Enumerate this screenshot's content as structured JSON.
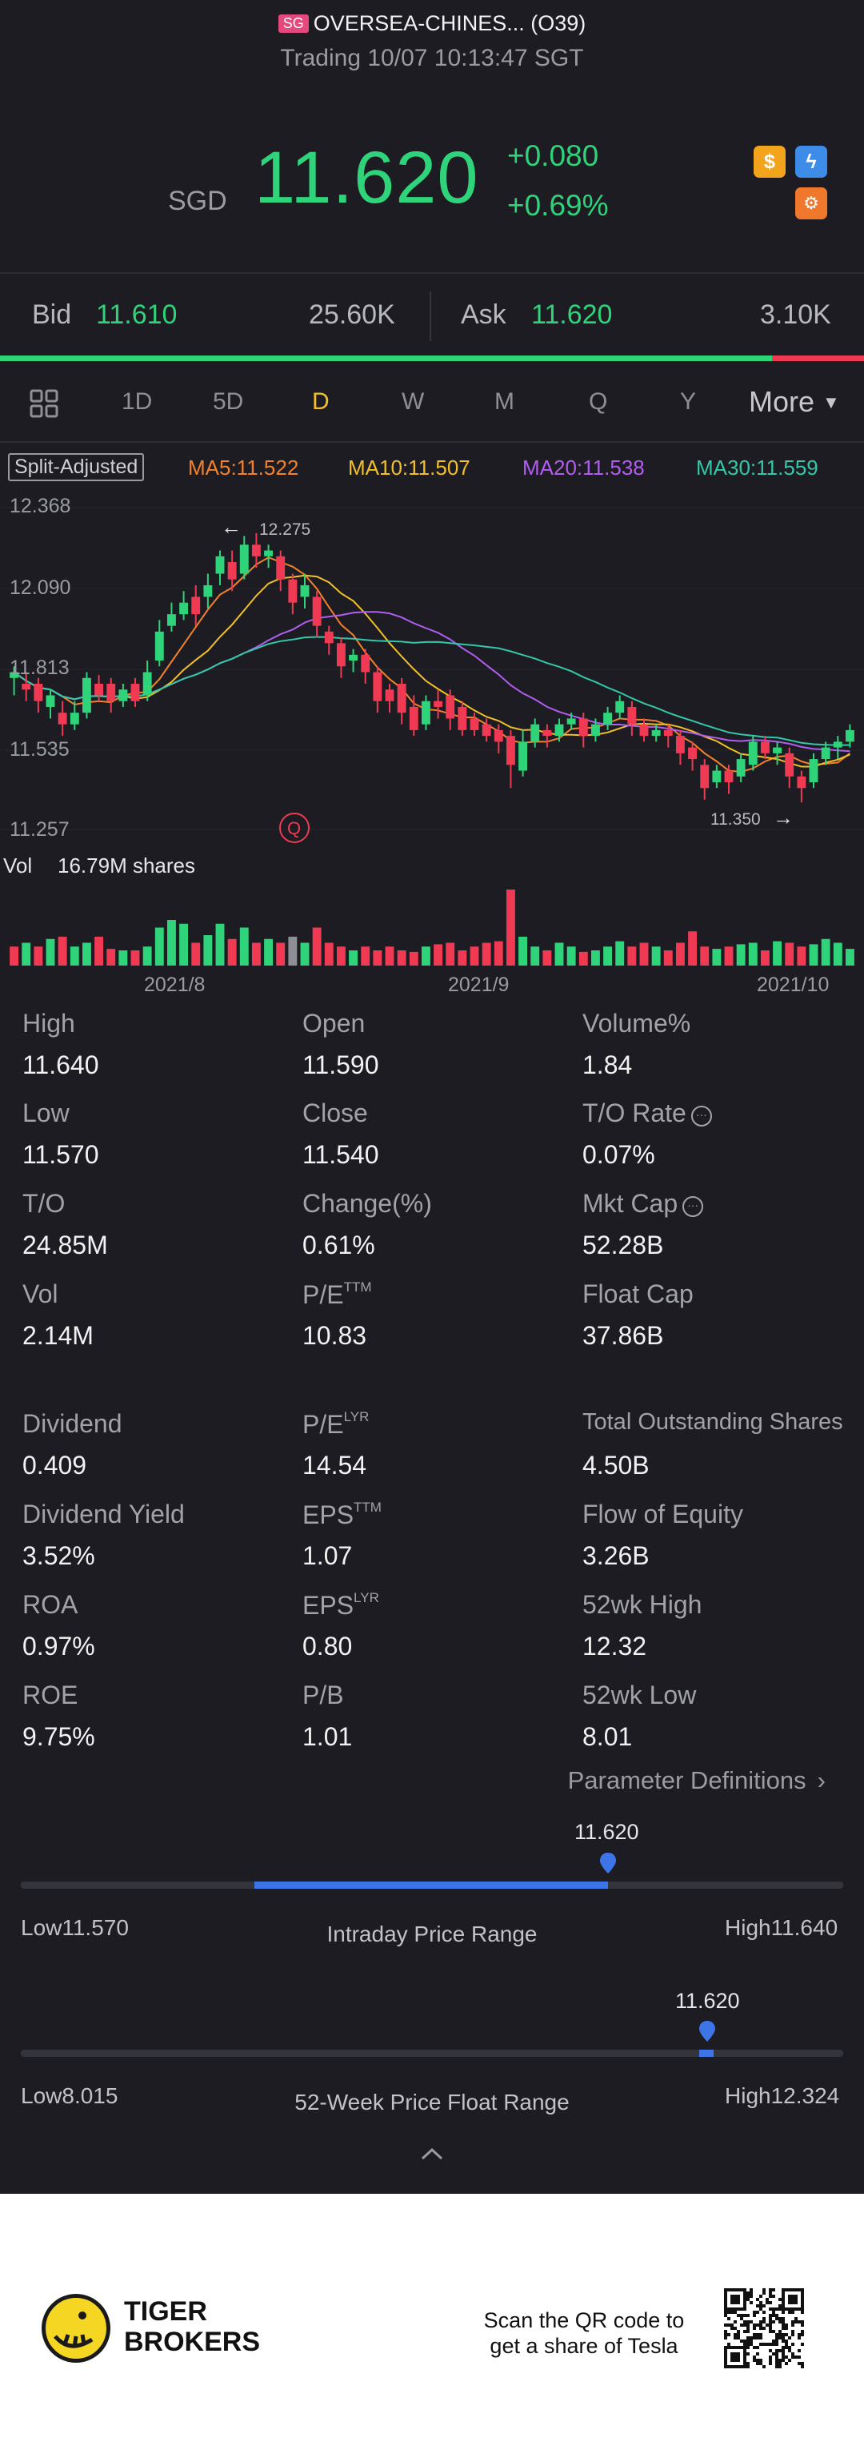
{
  "header": {
    "market_badge": "SG",
    "stock_name": "OVERSEA-CHINES... (O39)",
    "trading_status": "Trading 10/07 10:13:47 SGT",
    "currency": "SGD",
    "price": "11.620",
    "change": "+0.080",
    "change_pct": "+0.69%",
    "icons": [
      "dollar-icon",
      "flash-icon",
      "options-icon"
    ]
  },
  "bid_ask": {
    "bid_label": "Bid",
    "bid_price": "11.610",
    "bid_qty": "25.60K",
    "ask_label": "Ask",
    "ask_price": "11.620",
    "ask_qty": "3.10K",
    "bid_ratio": 0.894
  },
  "tabs": {
    "items": [
      "1D",
      "5D",
      "D",
      "W",
      "M",
      "Q",
      "Y"
    ],
    "active": "D",
    "more": "More"
  },
  "ma_legend": {
    "split": "Split-Adjusted",
    "ma5": "MA5:11.522",
    "ma10": "MA10:11.507",
    "ma20": "MA20:11.538",
    "ma30": "MA30:11.559",
    "colors": {
      "ma5": "#f3822c",
      "ma10": "#f2c028",
      "ma20": "#b05df0",
      "ma30": "#34c7a8"
    }
  },
  "chart": {
    "y_ticks": [
      "12.368",
      "12.090",
      "11.813",
      "11.535",
      "11.257"
    ],
    "high_marker": "12.275",
    "low_marker": "11.350",
    "q_marker": "Q",
    "vol_label": "Vol",
    "vol_value": "16.79M shares",
    "x_ticks": [
      "2021/8",
      "2021/9",
      "2021/10"
    ],
    "up_color": "#2fd47a",
    "down_color": "#f03a54"
  },
  "chart_data": {
    "type": "candlestick",
    "y_range": [
      11.257,
      12.368
    ],
    "candles": [
      [
        11.78,
        11.8,
        11.72,
        11.82
      ],
      [
        11.76,
        11.74,
        11.7,
        11.8
      ],
      [
        11.76,
        11.7,
        11.66,
        11.78
      ],
      [
        11.68,
        11.72,
        11.64,
        11.74
      ],
      [
        11.66,
        11.62,
        11.58,
        11.7
      ],
      [
        11.62,
        11.66,
        11.6,
        11.7
      ],
      [
        11.66,
        11.78,
        11.64,
        11.8
      ],
      [
        11.76,
        11.72,
        11.7,
        11.79
      ],
      [
        11.76,
        11.7,
        11.66,
        11.78
      ],
      [
        11.7,
        11.74,
        11.68,
        11.76
      ],
      [
        11.76,
        11.7,
        11.68,
        11.78
      ],
      [
        11.72,
        11.8,
        11.7,
        11.84
      ],
      [
        11.84,
        11.94,
        11.82,
        11.98
      ],
      [
        11.96,
        12.0,
        11.94,
        12.04
      ],
      [
        12.0,
        12.04,
        11.98,
        12.08
      ],
      [
        12.06,
        12.0,
        11.96,
        12.1
      ],
      [
        12.06,
        12.1,
        12.02,
        12.14
      ],
      [
        12.14,
        12.2,
        12.1,
        12.22
      ],
      [
        12.18,
        12.12,
        12.08,
        12.22
      ],
      [
        12.14,
        12.24,
        12.12,
        12.27
      ],
      [
        12.24,
        12.2,
        12.16,
        12.28
      ],
      [
        12.2,
        12.22,
        12.16,
        12.24
      ],
      [
        12.2,
        12.12,
        12.08,
        12.22
      ],
      [
        12.12,
        12.04,
        12.0,
        12.14
      ],
      [
        12.06,
        12.1,
        12.02,
        12.14
      ],
      [
        12.06,
        11.96,
        11.92,
        12.08
      ],
      [
        11.94,
        11.9,
        11.86,
        11.96
      ],
      [
        11.9,
        11.82,
        11.78,
        11.92
      ],
      [
        11.84,
        11.86,
        11.8,
        11.88
      ],
      [
        11.86,
        11.8,
        11.76,
        11.88
      ],
      [
        11.8,
        11.7,
        11.66,
        11.82
      ],
      [
        11.74,
        11.7,
        11.66,
        11.76
      ],
      [
        11.76,
        11.66,
        11.62,
        11.78
      ],
      [
        11.68,
        11.6,
        11.58,
        11.72
      ],
      [
        11.62,
        11.7,
        11.6,
        11.72
      ],
      [
        11.7,
        11.68,
        11.64,
        11.74
      ],
      [
        11.72,
        11.64,
        11.6,
        11.74
      ],
      [
        11.68,
        11.6,
        11.58,
        11.7
      ],
      [
        11.64,
        11.6,
        11.58,
        11.66
      ],
      [
        11.62,
        11.58,
        11.56,
        11.64
      ],
      [
        11.6,
        11.56,
        11.52,
        11.62
      ],
      [
        11.58,
        11.48,
        11.4,
        11.6
      ],
      [
        11.46,
        11.56,
        11.44,
        11.6
      ],
      [
        11.56,
        11.62,
        11.54,
        11.64
      ],
      [
        11.6,
        11.58,
        11.54,
        11.62
      ],
      [
        11.58,
        11.62,
        11.56,
        11.64
      ],
      [
        11.62,
        11.64,
        11.6,
        11.66
      ],
      [
        11.64,
        11.58,
        11.54,
        11.66
      ],
      [
        11.58,
        11.62,
        11.56,
        11.64
      ],
      [
        11.62,
        11.66,
        11.6,
        11.68
      ],
      [
        11.66,
        11.7,
        11.64,
        11.72
      ],
      [
        11.68,
        11.62,
        11.58,
        11.7
      ],
      [
        11.62,
        11.58,
        11.56,
        11.64
      ],
      [
        11.58,
        11.6,
        11.56,
        11.62
      ],
      [
        11.6,
        11.58,
        11.54,
        11.62
      ],
      [
        11.58,
        11.52,
        11.48,
        11.6
      ],
      [
        11.54,
        11.5,
        11.46,
        11.56
      ],
      [
        11.48,
        11.4,
        11.36,
        11.5
      ],
      [
        11.42,
        11.46,
        11.4,
        11.48
      ],
      [
        11.46,
        11.42,
        11.38,
        11.48
      ],
      [
        11.44,
        11.5,
        11.42,
        11.52
      ],
      [
        11.48,
        11.56,
        11.46,
        11.58
      ],
      [
        11.56,
        11.52,
        11.5,
        11.58
      ],
      [
        11.52,
        11.54,
        11.48,
        11.56
      ],
      [
        11.52,
        11.44,
        11.4,
        11.54
      ],
      [
        11.44,
        11.4,
        11.35,
        11.46
      ],
      [
        11.42,
        11.5,
        11.4,
        11.52
      ],
      [
        11.5,
        11.54,
        11.48,
        11.56
      ],
      [
        11.54,
        11.56,
        11.5,
        11.58
      ],
      [
        11.56,
        11.6,
        11.54,
        11.62
      ]
    ],
    "volume_up": [
      false,
      true,
      false,
      true,
      false,
      true,
      true,
      false,
      false,
      true,
      false,
      true,
      true,
      true,
      true,
      false,
      true,
      true,
      false,
      true,
      false,
      true,
      false,
      false,
      true,
      false,
      false,
      false,
      true,
      false,
      false,
      false,
      false,
      false,
      true,
      false,
      false,
      false,
      false,
      false,
      false,
      false,
      true,
      true,
      false,
      true,
      true,
      false,
      true,
      true,
      true,
      false,
      false,
      true,
      false,
      false,
      false,
      false,
      true,
      false,
      true,
      true,
      false,
      true,
      false,
      false,
      true,
      true,
      true,
      true
    ],
    "volume_rel": [
      0.25,
      0.3,
      0.25,
      0.35,
      0.38,
      0.25,
      0.3,
      0.38,
      0.22,
      0.2,
      0.2,
      0.25,
      0.5,
      0.6,
      0.55,
      0.3,
      0.4,
      0.55,
      0.35,
      0.5,
      0.3,
      0.35,
      0.3,
      0.38,
      0.3,
      0.5,
      0.3,
      0.25,
      0.2,
      0.25,
      0.2,
      0.25,
      0.2,
      0.18,
      0.25,
      0.28,
      0.3,
      0.2,
      0.25,
      0.3,
      0.32,
      1.0,
      0.38,
      0.25,
      0.2,
      0.3,
      0.25,
      0.18,
      0.2,
      0.25,
      0.32,
      0.25,
      0.3,
      0.25,
      0.2,
      0.3,
      0.45,
      0.25,
      0.22,
      0.25,
      0.28,
      0.3,
      0.2,
      0.32,
      0.3,
      0.25,
      0.28,
      0.35,
      0.3,
      0.22
    ]
  },
  "stats": [
    {
      "label": "High",
      "value": "11.640"
    },
    {
      "label": "Open",
      "value": "11.590"
    },
    {
      "label": "Volume%",
      "value": "1.84"
    },
    {
      "label": "Low",
      "value": "11.570"
    },
    {
      "label": "Close",
      "value": "11.540"
    },
    {
      "label": "T/O Rate",
      "value": "0.07%"
    },
    {
      "label": "T/O",
      "value": "24.85M"
    },
    {
      "label": "Change(%)",
      "value": "0.61%"
    },
    {
      "label": "Mkt Cap",
      "value": "52.28B"
    },
    {
      "label": "Vol",
      "value": "2.14M"
    },
    {
      "label": "P/E",
      "sup": "TTM",
      "value": "10.83"
    },
    {
      "label": "Float Cap",
      "value": "37.86B"
    },
    {
      "label": "Dividend",
      "value": "0.409"
    },
    {
      "label": "P/E",
      "sup": "LYR",
      "value": "14.54"
    },
    {
      "label": "Total Outstanding Shares",
      "value": "4.50B"
    },
    {
      "label": "Dividend Yield",
      "value": "3.52%"
    },
    {
      "label": "EPS",
      "sup": "TTM",
      "value": "1.07"
    },
    {
      "label": "Flow of Equity",
      "value": "3.26B"
    },
    {
      "label": "ROA",
      "value": "0.97%"
    },
    {
      "label": "EPS",
      "sup": "LYR",
      "value": "0.80"
    },
    {
      "label": "52wk High",
      "value": "12.32"
    },
    {
      "label": "ROE",
      "value": "9.75%"
    },
    {
      "label": "P/B",
      "value": "1.01"
    },
    {
      "label": "52wk Low",
      "value": "8.01"
    }
  ],
  "parameter_definitions": "Parameter Definitions",
  "intraday_range": {
    "current": "11.620",
    "low": "Low11.570",
    "high": "High11.640",
    "title": "Intraday Price Range",
    "position": 0.714
  },
  "week52_range": {
    "current": "11.620",
    "low": "Low8.015",
    "high": "High12.324",
    "title": "52-Week Price Float Range",
    "position": 0.837
  },
  "footer": {
    "brand_line1": "TIGER",
    "brand_line2": "BROKERS",
    "qr_line1": "Scan the QR code to",
    "qr_line2": "get a share of Tesla"
  }
}
